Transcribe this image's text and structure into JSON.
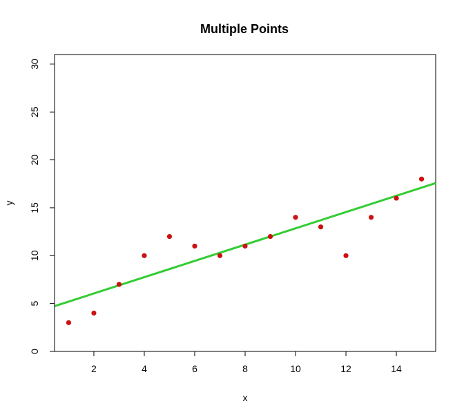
{
  "chart_data": {
    "type": "scatter",
    "title": "Multiple Points",
    "xlabel": "x",
    "ylabel": "y",
    "xlim": [
      0.44,
      15.56
    ],
    "ylim": [
      0,
      31
    ],
    "xticks": [
      2,
      4,
      6,
      8,
      10,
      12,
      14
    ],
    "yticks": [
      0,
      5,
      10,
      15,
      20,
      25,
      30
    ],
    "grid": false,
    "series": [
      {
        "x": [
          1,
          2,
          3,
          4,
          5,
          6,
          7,
          8,
          9,
          10,
          11,
          12,
          13,
          14,
          15
        ],
        "y": [
          3,
          4,
          7,
          10,
          12,
          11,
          10,
          11,
          12,
          14,
          13,
          10,
          14,
          16,
          18
        ],
        "color": "#cc1111"
      }
    ],
    "fit_line": {
      "intercept": 4.35,
      "slope": 0.85,
      "color": "#33cc33"
    }
  }
}
